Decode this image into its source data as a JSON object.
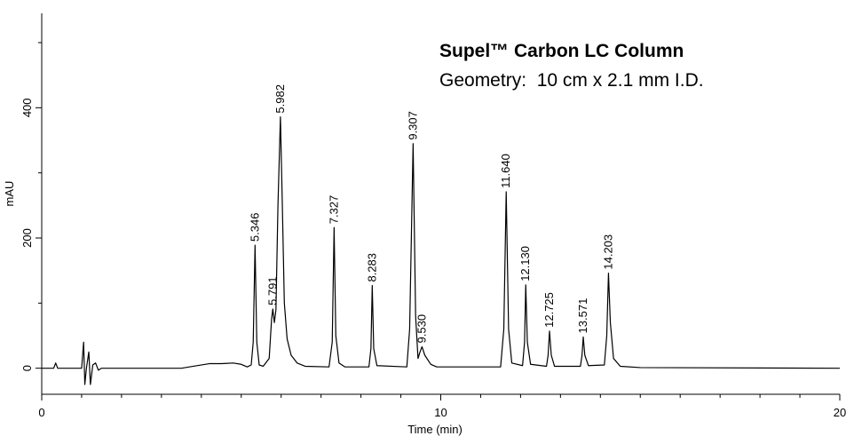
{
  "chart_data": {
    "type": "line",
    "title": "Supel™ Carbon LC Column",
    "subtitle": "Geometry:  10 cm x 2.1 mm I.D.",
    "x_label": "Time (min)",
    "y_label": "mAU",
    "xlim": [
      0,
      20
    ],
    "xticks": [
      0,
      10,
      20
    ],
    "xminorticks": [
      1,
      2,
      3,
      4,
      5,
      6,
      7,
      8,
      9,
      11,
      12,
      13,
      14,
      15,
      16,
      17,
      18,
      19
    ],
    "ylim": [
      -40,
      545
    ],
    "yticks": [
      0,
      200,
      400
    ],
    "yminorticks": [
      100,
      300,
      500
    ],
    "x": [
      0,
      0.3,
      0.35,
      0.4,
      1.0,
      1.05,
      1.08,
      1.12,
      1.18,
      1.22,
      1.28,
      1.35,
      1.42,
      1.5,
      3.5,
      3.8,
      4.2,
      4.5,
      4.8,
      5.0,
      5.15,
      5.25,
      5.3,
      5.346,
      5.39,
      5.45,
      5.55,
      5.7,
      5.76,
      5.791,
      5.83,
      5.87,
      5.92,
      5.982,
      6.03,
      6.08,
      6.15,
      6.25,
      6.4,
      6.6,
      7.2,
      7.28,
      7.327,
      7.37,
      7.45,
      7.6,
      8.2,
      8.25,
      8.283,
      8.32,
      8.4,
      9.15,
      9.22,
      9.307,
      9.37,
      9.43,
      9.48,
      9.53,
      9.6,
      9.75,
      9.9,
      11.5,
      11.58,
      11.64,
      11.7,
      11.78,
      12.05,
      12.1,
      12.13,
      12.17,
      12.25,
      12.65,
      12.69,
      12.725,
      12.77,
      12.85,
      13.5,
      13.54,
      13.571,
      13.61,
      13.7,
      14.1,
      14.16,
      14.203,
      14.25,
      14.33,
      14.5,
      15,
      20
    ],
    "series": [
      {
        "color": "#000000",
        "values": [
          0,
          0,
          8,
          0,
          0,
          40,
          -25,
          0,
          25,
          -25,
          5,
          8,
          -3,
          0,
          0,
          3,
          7,
          7,
          8,
          6,
          2,
          5,
          40,
          189,
          40,
          5,
          3,
          15,
          75,
          91,
          70,
          90,
          250,
          386,
          250,
          100,
          45,
          20,
          8,
          3,
          2,
          40,
          216,
          50,
          8,
          2,
          2,
          30,
          127,
          30,
          4,
          2,
          60,
          345,
          80,
          15,
          25,
          33,
          20,
          6,
          2,
          2,
          60,
          271,
          60,
          8,
          4,
          40,
          128,
          40,
          6,
          3,
          20,
          57,
          20,
          3,
          3,
          20,
          48,
          20,
          4,
          5,
          50,
          146,
          70,
          15,
          3,
          1,
          0
        ]
      }
    ],
    "annotations": [
      {
        "text": "5.346",
        "x": 5.346,
        "y": 189
      },
      {
        "text": "5.791",
        "x": 5.791,
        "y": 91
      },
      {
        "text": "5.982",
        "x": 5.982,
        "y": 386
      },
      {
        "text": "7.327",
        "x": 7.327,
        "y": 216
      },
      {
        "text": "8.283",
        "x": 8.283,
        "y": 127
      },
      {
        "text": "9.307",
        "x": 9.307,
        "y": 345
      },
      {
        "text": "9.530",
        "x": 9.53,
        "y": 33
      },
      {
        "text": "11.640",
        "x": 11.64,
        "y": 271
      },
      {
        "text": "12.130",
        "x": 12.13,
        "y": 128
      },
      {
        "text": "12.725",
        "x": 12.725,
        "y": 57
      },
      {
        "text": "13.571",
        "x": 13.571,
        "y": 48
      },
      {
        "text": "14.203",
        "x": 14.203,
        "y": 146
      }
    ]
  }
}
